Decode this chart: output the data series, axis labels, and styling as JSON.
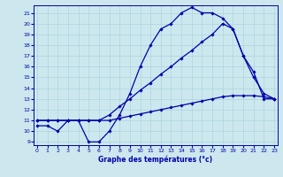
{
  "xlabel": "Graphe des températures (°c)",
  "bg_color": "#cce8ee",
  "grid_color": "#b0d8e0",
  "line_color": "#0000aa",
  "x_ticks": [
    0,
    1,
    2,
    3,
    4,
    5,
    6,
    7,
    8,
    9,
    10,
    11,
    12,
    13,
    14,
    15,
    16,
    17,
    18,
    19,
    20,
    21,
    22,
    23
  ],
  "y_ticks": [
    9,
    10,
    11,
    12,
    13,
    14,
    15,
    16,
    17,
    18,
    19,
    20,
    21
  ],
  "xlim": [
    -0.3,
    23.3
  ],
  "ylim": [
    8.7,
    21.7
  ],
  "series": [
    {
      "x": [
        0,
        1,
        2,
        3,
        4,
        5,
        6,
        7,
        8,
        9,
        10,
        11,
        12,
        13,
        14,
        15,
        16,
        17,
        18,
        19,
        20,
        21,
        22,
        23
      ],
      "y": [
        10.5,
        10.5,
        10.0,
        11.0,
        11.0,
        9.0,
        9.0,
        10.0,
        11.5,
        13.5,
        16.0,
        18.0,
        19.5,
        20.0,
        21.0,
        21.5,
        21.0,
        21.0,
        20.5,
        19.5,
        17.0,
        15.5,
        13.0,
        13.0
      ]
    },
    {
      "x": [
        0,
        1,
        2,
        3,
        4,
        5,
        6,
        7,
        8,
        9,
        10,
        11,
        12,
        13,
        14,
        15,
        16,
        17,
        18,
        19,
        20,
        21,
        22,
        23
      ],
      "y": [
        11.0,
        11.0,
        11.0,
        11.0,
        11.0,
        11.0,
        11.0,
        11.5,
        12.3,
        13.0,
        13.8,
        14.5,
        15.3,
        16.0,
        16.8,
        17.5,
        18.3,
        19.0,
        20.0,
        19.5,
        17.0,
        15.0,
        13.5,
        13.0
      ]
    },
    {
      "x": [
        0,
        1,
        2,
        3,
        4,
        5,
        6,
        7,
        8,
        9,
        10,
        11,
        12,
        13,
        14,
        15,
        16,
        17,
        18,
        19,
        20,
        21,
        22,
        23
      ],
      "y": [
        11.0,
        11.0,
        11.0,
        11.0,
        11.0,
        11.0,
        11.0,
        11.0,
        11.2,
        11.4,
        11.6,
        11.8,
        12.0,
        12.2,
        12.4,
        12.6,
        12.8,
        13.0,
        13.2,
        13.3,
        13.3,
        13.3,
        13.2,
        13.0
      ]
    }
  ]
}
